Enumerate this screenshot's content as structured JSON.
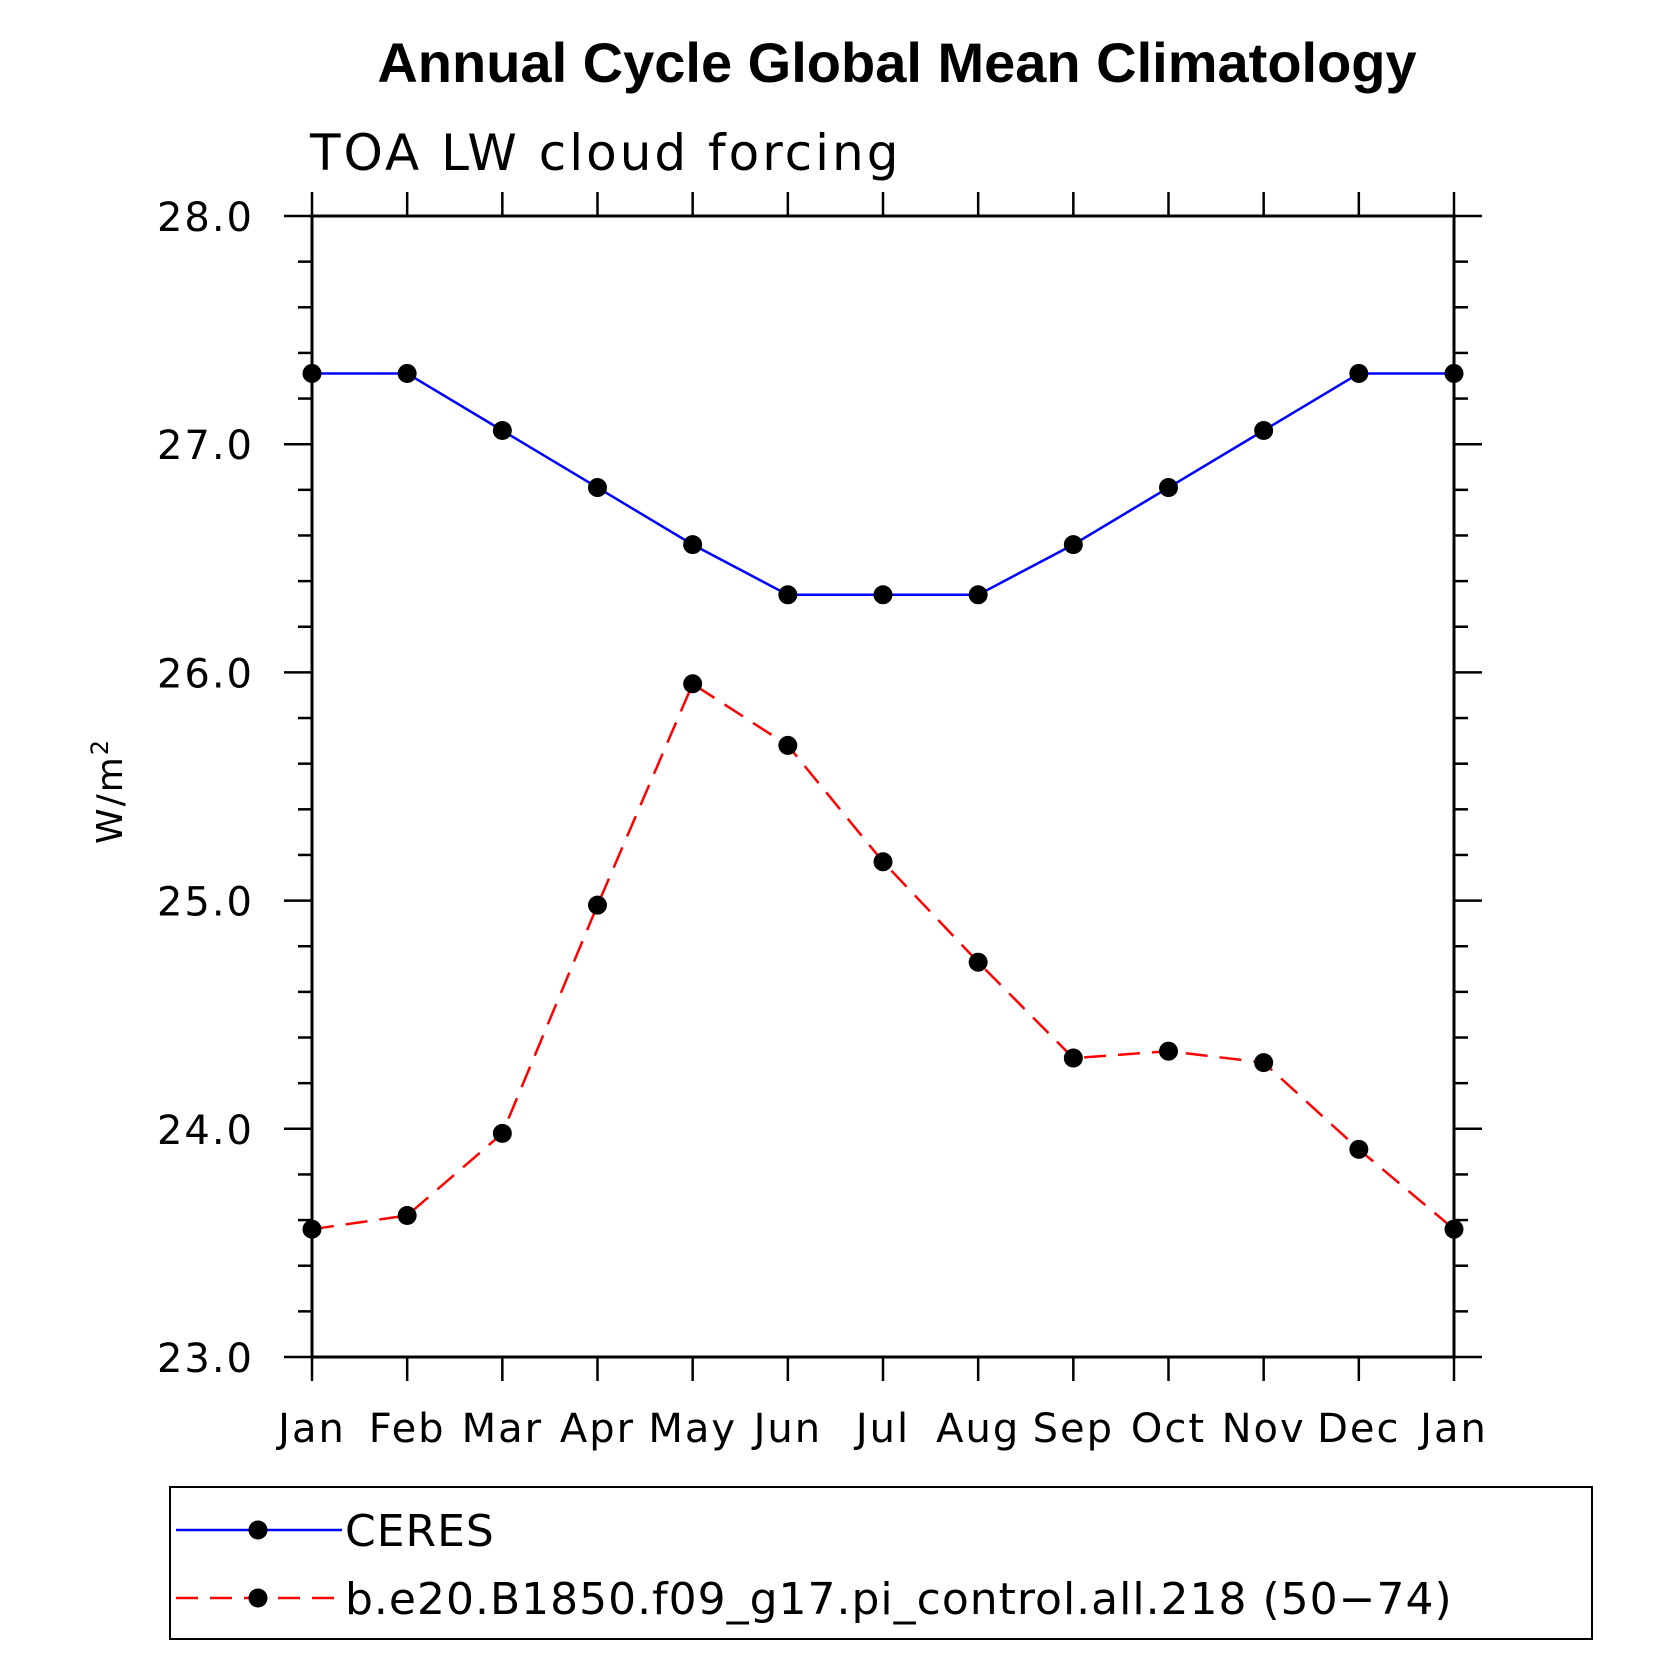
{
  "chart_data": {
    "type": "line",
    "title": "Annual Cycle Global Mean Climatology",
    "subtitle": "TOA LW cloud forcing",
    "ylabel_base": "W/m",
    "ylabel_sup": "2",
    "xlabel": "",
    "categories": [
      "Jan",
      "Feb",
      "Mar",
      "Apr",
      "May",
      "Jun",
      "Jul",
      "Aug",
      "Sep",
      "Oct",
      "Nov",
      "Dec",
      "Jan"
    ],
    "ylim": [
      23.0,
      28.0
    ],
    "yticks": [
      "23.0",
      "24.0",
      "25.0",
      "26.0",
      "27.0",
      "28.0"
    ],
    "grid": false,
    "legend_position": "bottom",
    "series": [
      {
        "name": "CERES",
        "color": "#0000ff",
        "line_style": "solid",
        "marker": "filled-circle",
        "values": [
          27.31,
          27.31,
          27.06,
          26.81,
          26.56,
          26.34,
          26.34,
          26.34,
          26.56,
          26.81,
          27.06,
          27.31,
          27.31
        ]
      },
      {
        "name": "b.e20.B1850.f09_g17.pi_control.all.218 (50−74)",
        "color": "#ff0000",
        "line_style": "dashed",
        "marker": "filled-circle",
        "values": [
          23.56,
          23.62,
          23.98,
          24.98,
          25.95,
          25.68,
          25.17,
          24.73,
          24.31,
          24.34,
          24.29,
          23.91,
          23.56
        ]
      }
    ]
  }
}
